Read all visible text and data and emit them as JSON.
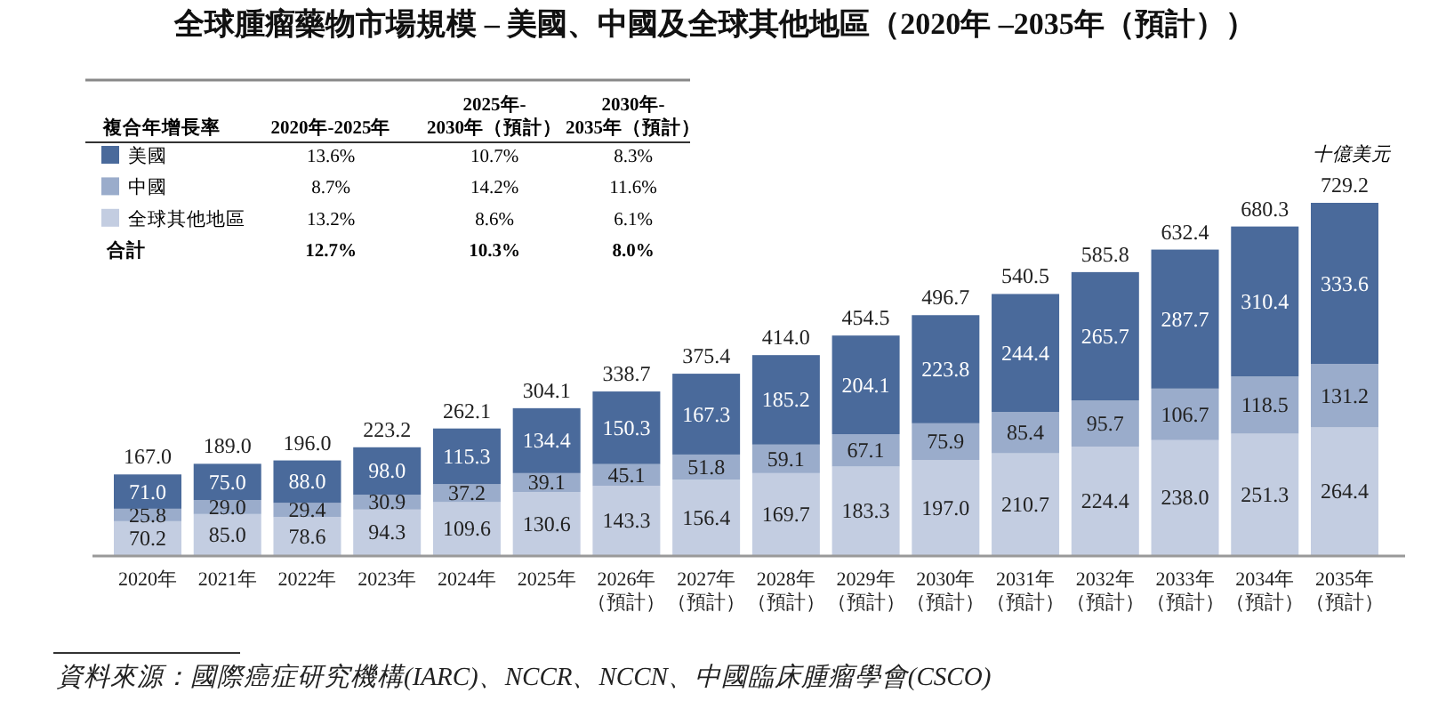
{
  "chart_data": {
    "type": "bar",
    "stacked": true,
    "legend": "top left",
    "legend_title": "複合年增長率",
    "title": "全球腫瘤藥物市場規模 – 美國、中國及全球其他地區（2020年 –2035年（預計））",
    "ylabel": "十億美元",
    "categories": [
      "2020年",
      "2021年",
      "2022年",
      "2023年",
      "2024年",
      "2025年",
      "2026年（預計）",
      "2027年（預計）",
      "2028年（預計）",
      "2029年（預計）",
      "2030年（預計）",
      "2031年（預計）",
      "2032年（預計）",
      "2033年（預計）",
      "2034年（預計）",
      "2035年（預計）"
    ],
    "series": [
      {
        "name": "全球其他地區",
        "color": "#c3cde1",
        "values": [
          70.2,
          85.0,
          78.6,
          94.3,
          109.6,
          130.6,
          143.3,
          156.4,
          169.7,
          183.3,
          197.0,
          210.7,
          224.4,
          238.0,
          251.3,
          264.4
        ],
        "value_labels": [
          "70.2",
          "85.0",
          "78.6",
          "94.3",
          "109.6",
          "130.6",
          "143.3",
          "156.4",
          "169.7",
          "183.3",
          "197.0",
          "210.7",
          "224.4",
          "238.0",
          "251.3",
          "264.4"
        ]
      },
      {
        "name": "中國",
        "color": "#9aaccb",
        "values": [
          25.8,
          29.0,
          29.4,
          30.9,
          37.2,
          39.1,
          45.1,
          51.8,
          59.1,
          67.1,
          75.9,
          85.4,
          95.7,
          106.7,
          118.5,
          131.2
        ],
        "value_labels": [
          "25.8",
          "29.0",
          "29.4",
          "30.9",
          "37.2",
          "39.1",
          "45.1",
          "51.8",
          "59.1",
          "67.1",
          "75.9",
          "85.4",
          "95.7",
          "106.7",
          "118.5",
          "131.2"
        ]
      },
      {
        "name": "美國",
        "color": "#4a6a9b",
        "values": [
          71.0,
          75.0,
          88.0,
          98.0,
          115.3,
          134.4,
          150.3,
          167.3,
          185.2,
          204.1,
          223.8,
          244.4,
          265.7,
          287.7,
          310.4,
          333.6
        ],
        "value_labels": [
          "71.0",
          "75.0",
          "88.0",
          "98.0",
          "115.3",
          "134.4",
          "150.3",
          "167.3",
          "185.2",
          "204.1",
          "223.8",
          "244.4",
          "265.7",
          "287.7",
          "310.4",
          "333.6"
        ]
      }
    ],
    "totals": [
      "167.0",
      "189.0",
      "196.0",
      "223.2",
      "262.1",
      "304.1",
      "338.7",
      "375.4",
      "414.0",
      "454.5",
      "496.7",
      "540.5",
      "585.8",
      "632.4",
      "680.3",
      "729.2"
    ],
    "annotations": [
      "2020年-2025年",
      "2025年-\n2030年（預計）",
      "2030年-\n2035年（預計）",
      "13.2%",
      "8.6%",
      "6.1%",
      "8.7%",
      "14.2%",
      "11.6%",
      "13.6%",
      "10.7%",
      "8.3%",
      "合計",
      "12.7%",
      "10.3%",
      "8.0%",
      "資料來源：國際癌症研究機構(IARC)、NCCR、NCCN、中國臨床腫瘤學會(CSCO)"
    ]
  }
}
